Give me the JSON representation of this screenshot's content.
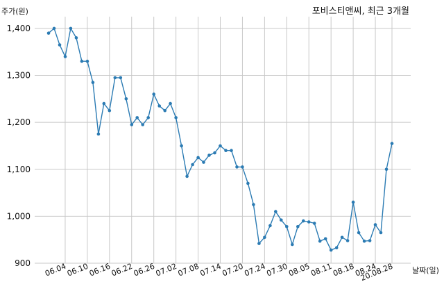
{
  "chart_data": {
    "type": "line",
    "title": "포비스티앤씨, 최근 3개월",
    "xlabel": "날짜(일)",
    "ylabel": "주가(원)",
    "ylim": [
      900,
      1425
    ],
    "yticks": [
      900,
      1000,
      1100,
      1200,
      1300,
      1400
    ],
    "ytick_labels": [
      "900",
      "1,000",
      "1,100",
      "1,200",
      "1,300",
      "1,400"
    ],
    "xtick_labels": [
      "06.04",
      "06.10",
      "06.16",
      "06.22",
      "06.26",
      "07.02",
      "07.08",
      "07.14",
      "07.20",
      "07.24",
      "07.30",
      "08.05",
      "08.11",
      "08.18",
      "08.24",
      "20.08.28"
    ],
    "xtick_index": [
      3,
      7,
      11,
      15,
      19,
      23,
      27,
      31,
      35,
      39,
      43,
      47,
      51,
      55,
      59,
      62
    ],
    "grid": true,
    "colors": {
      "series": "#2b7bb3",
      "grid": "#c8c8c8"
    },
    "series": [
      {
        "values": [
          1390,
          1400,
          1365,
          1340,
          1400,
          1380,
          1330,
          1330,
          1285,
          1175,
          1240,
          1225,
          1295,
          1295,
          1250,
          1195,
          1210,
          1195,
          1210,
          1260,
          1235,
          1225,
          1240,
          1210,
          1150,
          1085,
          1110,
          1125,
          1115,
          1130,
          1135,
          1150,
          1140,
          1140,
          1105,
          1105,
          1070,
          1025,
          942,
          955,
          980,
          1010,
          992,
          978,
          940,
          978,
          990,
          988,
          985,
          947,
          952,
          928,
          933,
          955,
          948,
          1030,
          965,
          947,
          948,
          982,
          965,
          1100,
          1155
        ]
      }
    ]
  }
}
